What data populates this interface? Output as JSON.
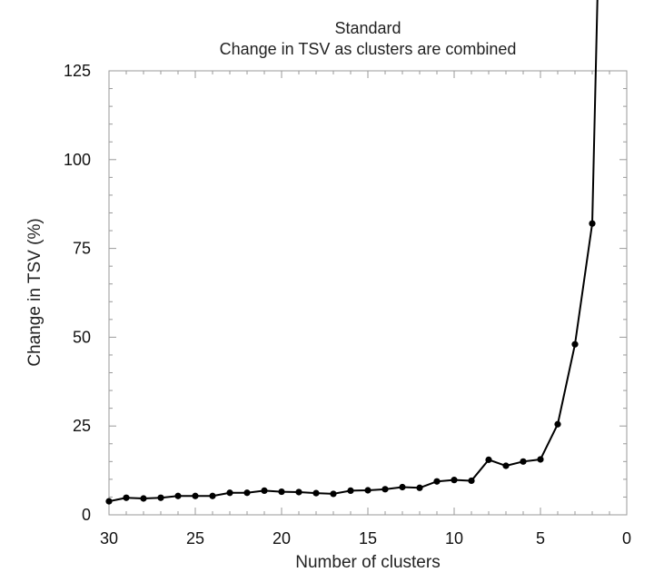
{
  "chart_data": {
    "type": "line",
    "title": "Standard",
    "subtitle": "Change in TSV as clusters are combined",
    "xlabel": "Number of clusters",
    "ylabel": "Change in TSV (%)",
    "xlim": [
      30,
      0
    ],
    "ylim": [
      0,
      125
    ],
    "x_reversed": true,
    "x_ticks": [
      30,
      25,
      20,
      15,
      10,
      5,
      0
    ],
    "y_ticks": [
      0,
      25,
      50,
      75,
      100,
      125
    ],
    "x_tick_labels": [
      "30",
      "25",
      "20",
      "15",
      "10",
      "5",
      "0"
    ],
    "y_tick_labels": [
      "0",
      "25",
      "50",
      "75",
      "100",
      "125"
    ],
    "grid": false,
    "legend": "none",
    "series": [
      {
        "x": [
          30,
          29,
          28,
          27,
          26,
          25,
          24,
          23,
          22,
          21,
          20,
          19,
          18,
          17,
          16,
          15,
          14,
          13,
          12,
          11,
          10,
          9,
          8,
          7,
          6,
          5,
          4,
          3,
          2,
          1.7
        ],
        "y": [
          3.8,
          4.8,
          4.6,
          4.8,
          5.3,
          5.3,
          5.3,
          6.2,
          6.2,
          6.8,
          6.5,
          6.4,
          6.1,
          5.9,
          6.8,
          6.9,
          7.2,
          7.8,
          7.6,
          9.4,
          9.8,
          9.6,
          15.5,
          13.8,
          15.0,
          15.6,
          25.5,
          48.0,
          82.0,
          145
        ]
      }
    ],
    "colors": {
      "line": "#000000",
      "frame": "#9a9a9a"
    }
  }
}
